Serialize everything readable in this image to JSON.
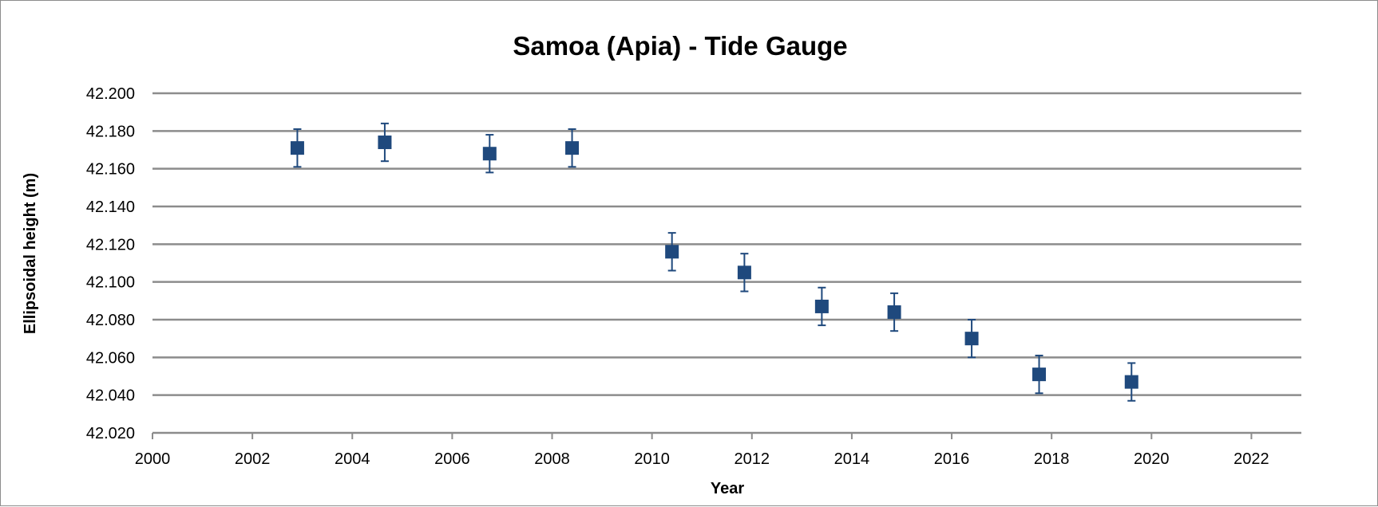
{
  "colors": {
    "marker": "#1f497d",
    "gridline": "#8c8c8c",
    "axis": "#8c8c8c",
    "border": "#8c8c8c"
  },
  "chart_data": {
    "type": "scatter",
    "title": "Samoa (Apia) - Tide Gauge",
    "xlabel": "Year",
    "ylabel": "Ellipsoidal height (m)",
    "xlim": [
      2000,
      2023
    ],
    "ylim": [
      42.02,
      42.2
    ],
    "x_ticks": [
      "2000",
      "2002",
      "2004",
      "2006",
      "2008",
      "2010",
      "2012",
      "2014",
      "2016",
      "2018",
      "2020",
      "2022"
    ],
    "y_ticks": [
      "42.020",
      "42.040",
      "42.060",
      "42.080",
      "42.100",
      "42.120",
      "42.140",
      "42.160",
      "42.180",
      "42.200"
    ],
    "grid": "horizontal",
    "legend": "none",
    "marker": "square",
    "error_bars": true,
    "points": [
      {
        "x": 2002.9,
        "y": 42.171,
        "err": 0.01
      },
      {
        "x": 2004.65,
        "y": 42.174,
        "err": 0.01
      },
      {
        "x": 2006.75,
        "y": 42.168,
        "err": 0.01
      },
      {
        "x": 2008.4,
        "y": 42.171,
        "err": 0.01
      },
      {
        "x": 2010.4,
        "y": 42.116,
        "err": 0.01
      },
      {
        "x": 2011.85,
        "y": 42.105,
        "err": 0.01
      },
      {
        "x": 2013.4,
        "y": 42.087,
        "err": 0.01
      },
      {
        "x": 2014.85,
        "y": 42.084,
        "err": 0.01
      },
      {
        "x": 2016.4,
        "y": 42.07,
        "err": 0.01
      },
      {
        "x": 2017.75,
        "y": 42.051,
        "err": 0.01
      },
      {
        "x": 2019.6,
        "y": 42.047,
        "err": 0.01
      }
    ]
  }
}
